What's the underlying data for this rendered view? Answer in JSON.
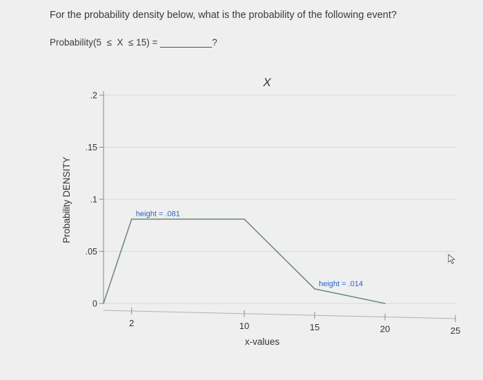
{
  "question": {
    "prompt": "For the probability density below, what is the probability of the following event?",
    "event_prefix": "Probability(5",
    "le1": "≤",
    "var": "X",
    "le2": "≤",
    "event_suffix": "15) =",
    "blank": "__________",
    "qmark": "?"
  },
  "chart_data": {
    "type": "line",
    "title": "X",
    "xlabel": "x-values",
    "ylabel": "Probability DENSITY",
    "x_ticks": [
      "2",
      "10",
      "15",
      "20",
      "25"
    ],
    "x_tick_values": [
      2,
      10,
      15,
      20,
      25
    ],
    "y_ticks": [
      "0",
      ".05",
      ".1",
      ".15",
      ".2"
    ],
    "y_tick_values": [
      0,
      0.05,
      0.1,
      0.15,
      0.2
    ],
    "xlim": [
      0,
      25
    ],
    "ylim": [
      0,
      0.2
    ],
    "grid": true,
    "series": [
      {
        "x": [
          0,
          2,
          10,
          15,
          20
        ],
        "y": [
          0,
          0.081,
          0.081,
          0.014,
          0
        ]
      }
    ],
    "annotations": [
      {
        "text": "height = .081",
        "x": 2.3,
        "y": 0.081
      },
      {
        "text": "height = .014",
        "x": 15.3,
        "y": 0.014
      }
    ],
    "colors": {
      "line": "#6e8f74",
      "annotation": "#2a5fc4",
      "grid": "#d8d8da",
      "axis": "#888888"
    }
  }
}
